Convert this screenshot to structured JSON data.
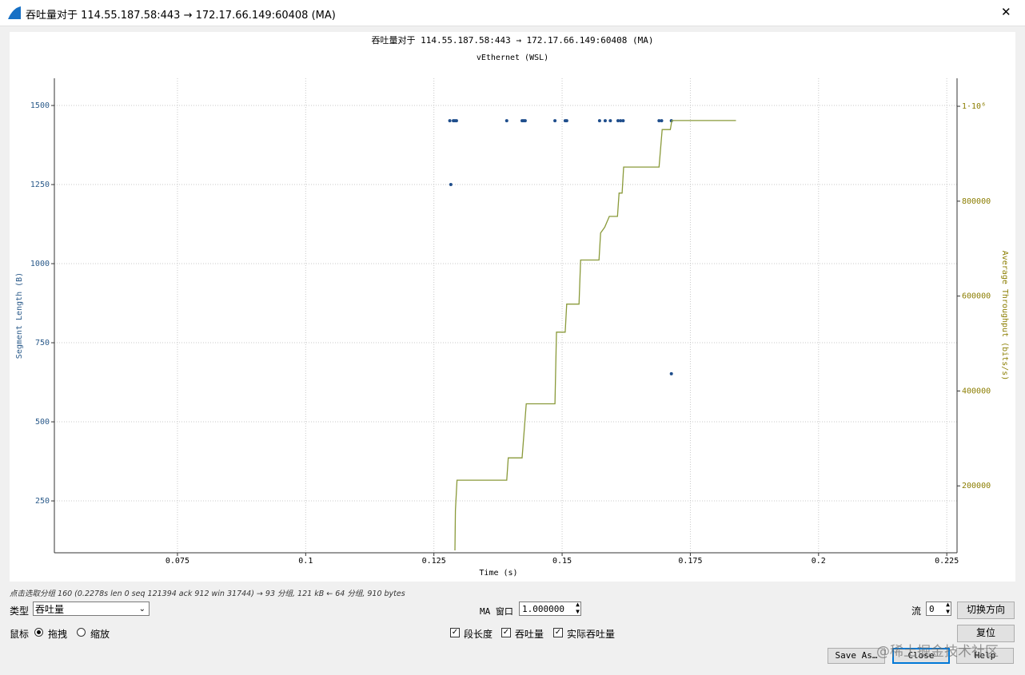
{
  "window": {
    "title": "吞吐量对于 114.55.187.58:443 → 172.17.66.149:60408 (MA)",
    "close": "✕"
  },
  "chart_data": {
    "type": "combo",
    "title": "吞吐量对于 114.55.187.58:443 → 172.17.66.149:60408 (MA)",
    "subtitle": "vEthernet (WSL)",
    "x_label": "Time (s)",
    "y_label": "Segment Length (B)",
    "y2_label": "Average Throughput (bits/s)",
    "xlim": [
      0.051,
      0.227
    ],
    "xticks": [
      0.075,
      0.1,
      0.125,
      0.15,
      0.175,
      0.2,
      0.225
    ],
    "ylim": [
      86,
      1586
    ],
    "yticks": [
      250,
      500,
      750,
      1000,
      1250,
      1500
    ],
    "y2lim": [
      59000,
      1059000
    ],
    "y2ticks": [
      200000,
      400000,
      600000,
      800000,
      {
        "value": 1000000,
        "label": "1·10⁶"
      }
    ],
    "grid": true,
    "y_color": "#2a5a8a",
    "y2_color": "#8b7d00",
    "series": [
      {
        "type": "scatter",
        "color": "#1f4e8c",
        "x": [
          0.1281,
          0.1288,
          0.1291,
          0.1294,
          0.1392,
          0.1422,
          0.1425,
          0.1428,
          0.1486,
          0.1506,
          0.1509,
          0.1573,
          0.1584,
          0.1594,
          0.1609,
          0.1614,
          0.1619,
          0.1689,
          0.1694,
          0.1713,
          0.1283,
          0.1713
        ],
        "values": [
          1452,
          1452,
          1452,
          1452,
          1452,
          1452,
          1452,
          1452,
          1452,
          1452,
          1452,
          1452,
          1452,
          1452,
          1452,
          1452,
          1452,
          1452,
          1452,
          1452,
          1250,
          652
        ]
      },
      {
        "type": "line",
        "axis": "y2",
        "color": "#8a9a3a",
        "x": [
          0.1291,
          0.1292,
          0.1295,
          0.1392,
          0.1395,
          0.1422,
          0.143,
          0.1486,
          0.1489,
          0.1506,
          0.1509,
          0.1533,
          0.1536,
          0.1572,
          0.1575,
          0.1583,
          0.1592,
          0.1608,
          0.1611,
          0.1617,
          0.162,
          0.1689,
          0.1695,
          0.1711,
          0.1714,
          0.1839
        ],
        "values": [
          64000,
          148000,
          212000,
          212000,
          259000,
          259000,
          373000,
          373000,
          524000,
          524000,
          583000,
          583000,
          676000,
          676000,
          733000,
          745000,
          768000,
          768000,
          817000,
          817000,
          872000,
          872000,
          951000,
          951000,
          970000,
          970000
        ]
      }
    ]
  },
  "status": "点击选取分组 160 (0.2278s len 0 seq 121394 ack 912 win 31744) → 93 分组, 121 kB ← 64 分组, 910 bytes",
  "controls": {
    "type_label": "类型",
    "type_value": "吞吐量",
    "ma_label": "MA 窗口",
    "ma_value": "1.000000",
    "stream_label": "流",
    "stream_value": "0",
    "switch_button": "切换方向",
    "mouse_label": "鼠标",
    "drag": "拖拽",
    "zoom": "缩放",
    "checks": [
      "段长度",
      "吞吐量",
      "实际吞吐量"
    ],
    "reset": "复位",
    "save": "Save As…",
    "close": "Close",
    "help": "Help"
  },
  "watermark": "@稀土掘金技术社区"
}
